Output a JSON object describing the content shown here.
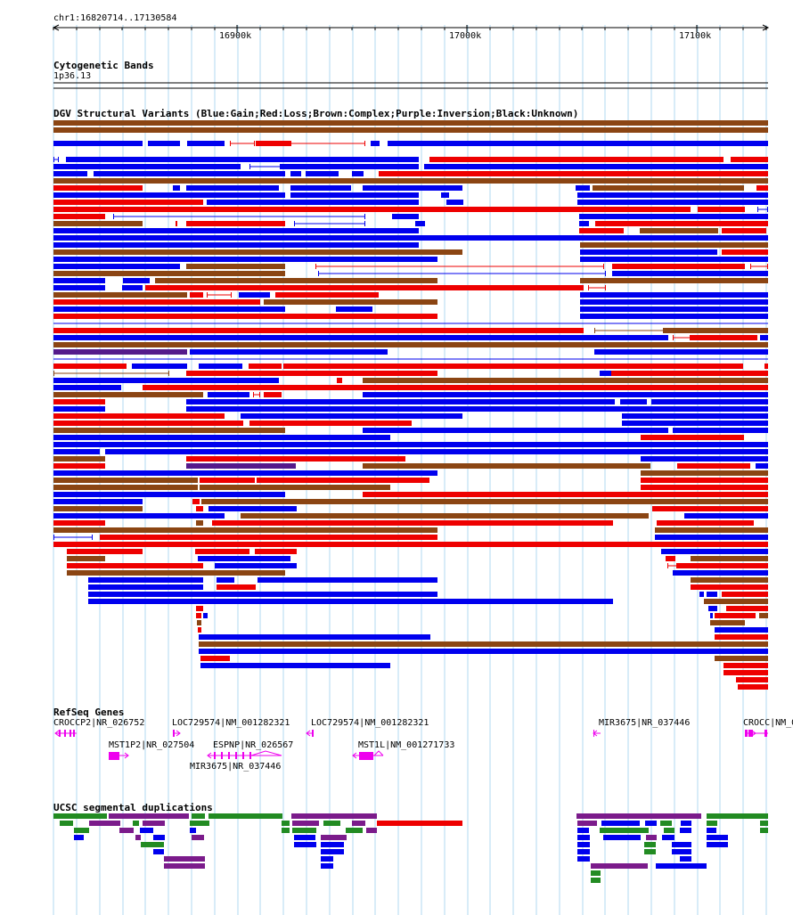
{
  "ruler": {
    "position": "chr1:16820714..17130584",
    "ticks": [
      "16900k",
      "17000k",
      "17100k"
    ]
  },
  "tracks": {
    "cytoband": {
      "title": "Cytogenetic Bands",
      "band": "1p36.13"
    },
    "dgv": {
      "title": "DGV Structural Variants (Blue:Gain;Red:Loss;Brown:Complex;Purple:Inversion;Black:Unknown)",
      "colors": {
        "gain": "#0000ee",
        "loss": "#ee0000",
        "complex": "#8b4513",
        "inversion": "#551a8b",
        "unknown": "#000000"
      }
    },
    "refseq": {
      "title": "RefSeq Genes",
      "genes": [
        "CROCCP2|NR_026752",
        "LOC729574|NM_001282321",
        "LOC729574|NM_001282321",
        "MIR3675|NR_037446",
        "CROCC|NM_0",
        "MST1P2|NR_027504",
        "ESPNP|NR_026567",
        "MST1L|NM_001271733",
        "MIR3675|NR_037446"
      ],
      "color": "#ee00ee"
    },
    "segdup": {
      "title": "UCSC segmental duplications",
      "colors": {
        "green": "#228b22",
        "purple": "#7b1b8b",
        "blue": "#0000ee",
        "red": "#ee0000"
      }
    }
  }
}
